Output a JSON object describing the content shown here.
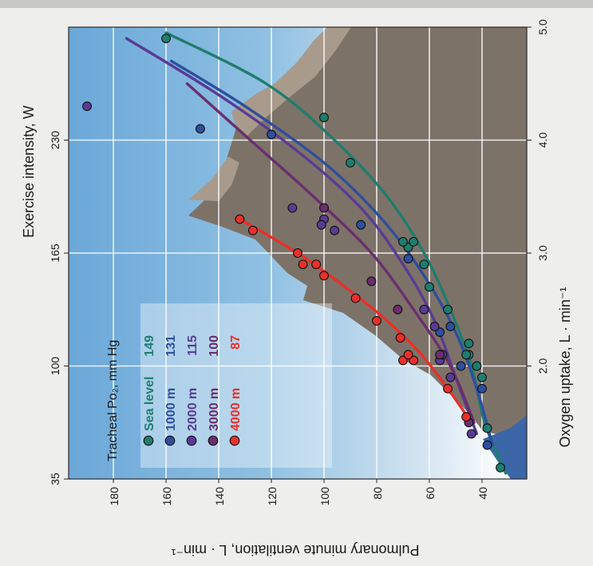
{
  "figure": {
    "top_axis_label": "Exercise intensity, W",
    "bottom_axis_label": "Oxygen uptake, L · min⁻¹",
    "left_axis_label": "Pulmonary minute ventilation, L · min⁻¹",
    "legend_title": "Tracheal Po₂, mm Hg"
  },
  "chart_data": {
    "type": "scatter",
    "orientation": "rotated-90-clockwise",
    "title": "",
    "xlabel": "Oxygen uptake, L · min⁻¹",
    "x2label": "Exercise intensity, W",
    "ylabel": "Pulmonary minute ventilation, L · min⁻¹",
    "xlim": [
      1.0,
      5.0
    ],
    "ylim": [
      23,
      197
    ],
    "x_ticks": [
      2.0,
      3.0,
      4.0,
      5.0
    ],
    "x_tick_labels": [
      "2.0",
      "3.0",
      "4.0",
      "5.0"
    ],
    "x2_ticks": [
      1.0,
      2.0,
      3.0,
      4.0
    ],
    "x2_tick_labels": [
      "35",
      "100",
      "165",
      "230"
    ],
    "y_ticks": [
      40,
      60,
      80,
      100,
      120,
      140,
      160,
      180
    ],
    "y_tick_labels": [
      "40",
      "60",
      "80",
      "100",
      "120",
      "140",
      "160",
      "180"
    ],
    "grid": true,
    "legend_position": "upper-left",
    "series": [
      {
        "name": "Sea level",
        "value": "149",
        "color": "#1f7d6e",
        "points": [
          [
            1.1,
            33
          ],
          [
            1.45,
            38
          ],
          [
            1.9,
            40
          ],
          [
            2.0,
            42
          ],
          [
            2.1,
            45
          ],
          [
            2.1,
            46
          ],
          [
            2.2,
            45
          ],
          [
            2.5,
            53
          ],
          [
            2.7,
            60
          ],
          [
            2.9,
            62
          ],
          [
            3.05,
            68
          ],
          [
            3.1,
            66
          ],
          [
            3.1,
            70
          ],
          [
            3.8,
            90
          ],
          [
            4.2,
            100
          ],
          [
            4.9,
            160
          ]
        ],
        "curve": [
          [
            1.05,
            31
          ],
          [
            1.5,
            39
          ],
          [
            2.0,
            44
          ],
          [
            2.5,
            52
          ],
          [
            3.0,
            62
          ],
          [
            3.5,
            76
          ],
          [
            4.0,
            96
          ],
          [
            4.5,
            122
          ],
          [
            4.95,
            160
          ]
        ]
      },
      {
        "name": "1000 m",
        "value": "131",
        "color": "#2e4f9e",
        "points": [
          [
            1.3,
            38
          ],
          [
            1.8,
            40
          ],
          [
            2.0,
            48
          ],
          [
            2.3,
            56
          ],
          [
            2.35,
            52
          ],
          [
            2.95,
            68
          ],
          [
            3.25,
            86
          ],
          [
            4.05,
            120
          ],
          [
            4.1,
            147
          ]
        ],
        "curve": [
          [
            1.3,
            36
          ],
          [
            1.8,
            42
          ],
          [
            2.3,
            50
          ],
          [
            2.8,
            62
          ],
          [
            3.3,
            78
          ],
          [
            3.8,
            100
          ],
          [
            4.3,
            130
          ],
          [
            4.7,
            158
          ]
        ]
      },
      {
        "name": "2000 m",
        "value": "115",
        "color": "#5a3b94",
        "points": [
          [
            1.4,
            44
          ],
          [
            1.9,
            52
          ],
          [
            2.05,
            56
          ],
          [
            2.1,
            55
          ],
          [
            2.35,
            58
          ],
          [
            2.5,
            62
          ],
          [
            3.3,
            100
          ],
          [
            3.2,
            96
          ],
          [
            3.25,
            101
          ],
          [
            3.4,
            112
          ],
          [
            4.3,
            190
          ]
        ],
        "curve": [
          [
            1.4,
            42
          ],
          [
            1.9,
            50
          ],
          [
            2.4,
            58
          ],
          [
            2.9,
            70
          ],
          [
            3.4,
            86
          ],
          [
            3.9,
            110
          ],
          [
            4.4,
            140
          ],
          [
            4.9,
            175
          ]
        ]
      },
      {
        "name": "3000 m",
        "value": "100",
        "color": "#6a2f6e",
        "points": [
          [
            1.5,
            45
          ],
          [
            2.1,
            56
          ],
          [
            2.5,
            72
          ],
          [
            2.75,
            82
          ],
          [
            3.4,
            100
          ]
        ],
        "curve": [
          [
            1.5,
            43
          ],
          [
            2.0,
            52
          ],
          [
            2.5,
            66
          ],
          [
            3.0,
            82
          ],
          [
            3.5,
            104
          ],
          [
            4.0,
            128
          ],
          [
            4.5,
            152
          ]
        ]
      },
      {
        "name": "4000 m",
        "value": "87",
        "color": "#e8302a",
        "points": [
          [
            1.55,
            46
          ],
          [
            1.8,
            53
          ],
          [
            2.05,
            66
          ],
          [
            2.05,
            70
          ],
          [
            2.1,
            68
          ],
          [
            2.25,
            71
          ],
          [
            2.4,
            80
          ],
          [
            2.6,
            88
          ],
          [
            2.8,
            100
          ],
          [
            2.9,
            103
          ],
          [
            2.9,
            108
          ],
          [
            3.0,
            110
          ],
          [
            3.2,
            127
          ],
          [
            3.3,
            132
          ]
        ],
        "curve": [
          [
            1.5,
            44
          ],
          [
            1.8,
            53
          ],
          [
            2.1,
            63
          ],
          [
            2.4,
            76
          ],
          [
            2.7,
            92
          ],
          [
            3.0,
            110
          ],
          [
            3.3,
            132
          ]
        ]
      }
    ]
  }
}
